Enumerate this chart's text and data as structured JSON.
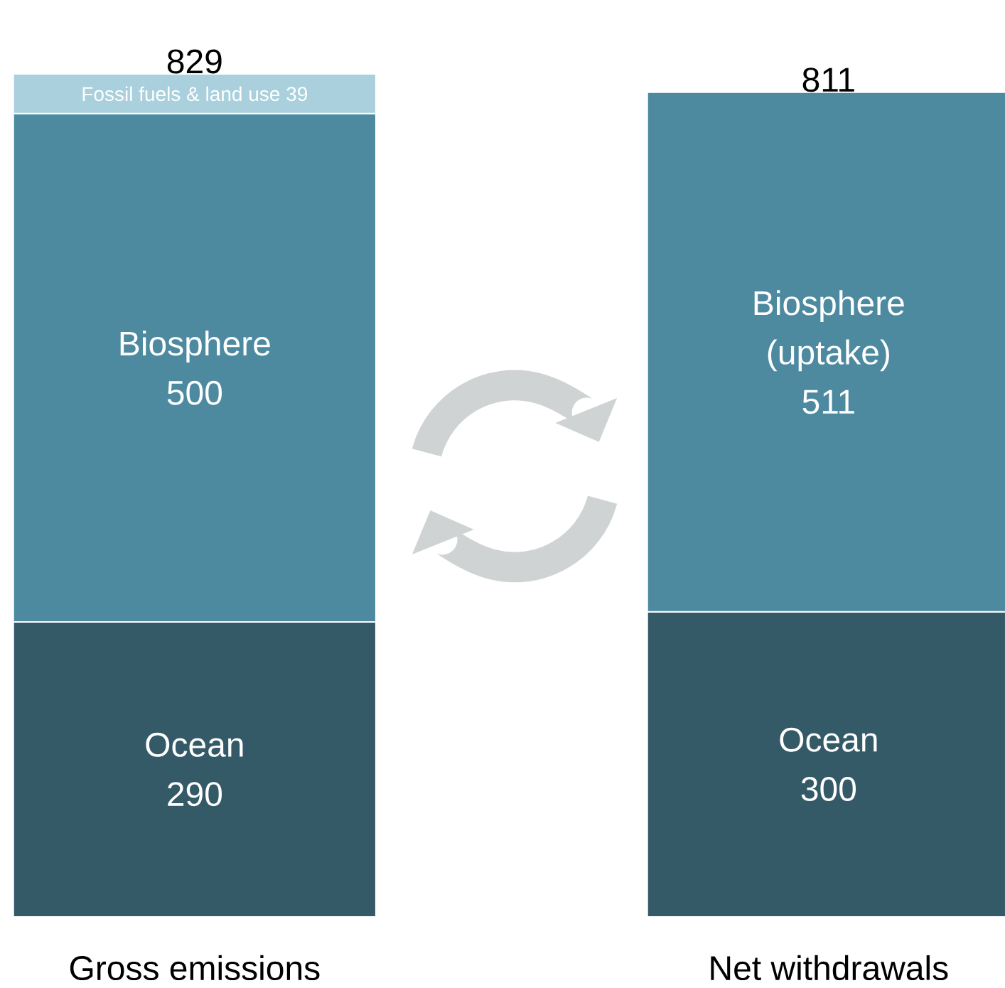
{
  "chart_data": {
    "type": "bar",
    "stacked": true,
    "data_labels": true,
    "categories": [
      "Gross emissions",
      "Net withdrawals"
    ],
    "series": [
      {
        "name": "Ocean",
        "color": "#345a68",
        "values": [
          290,
          300
        ]
      },
      {
        "name": "Biosphere",
        "color": "#4d8aa0",
        "values": [
          500,
          null
        ]
      },
      {
        "name": "Biosphere (uptake)",
        "color": "#4d8aa0",
        "values": [
          null,
          511
        ]
      },
      {
        "name": "Fossil fuels & land use",
        "color": "#a9d0dc",
        "values": [
          39,
          null
        ]
      }
    ],
    "totals": [
      "829",
      "811"
    ]
  }
}
